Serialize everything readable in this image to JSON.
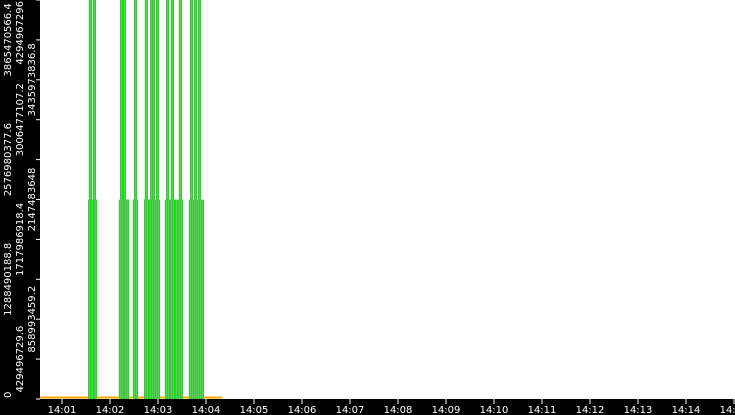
{
  "chart_data": {
    "type": "bar",
    "title": "",
    "xlabel": "",
    "ylabel": "",
    "grid": false,
    "ylim": [
      0,
      4294967296
    ],
    "xlim": [
      "14:00:00",
      "14:15:00"
    ],
    "y_tick_labels": [
      "0",
      "429496729.6",
      "858993459.2",
      "1288490188.8",
      "1717986918.4",
      "2147483648",
      "2576980377.6",
      "3006477107.2",
      "3435973836.8",
      "3865470566.4",
      "4294967296"
    ],
    "x_tick_labels": [
      "14:01",
      "14:02",
      "14:03",
      "14:04",
      "14:05",
      "14:06",
      "14:07",
      "14:08",
      "14:09",
      "14:10",
      "14:11",
      "14:12",
      "14:13",
      "14:14",
      "14:15"
    ],
    "colors": {
      "spike": "#00ee00",
      "spike_edge": "#a0a0a0",
      "baseline": "#ffa500",
      "axis_bg": "#000000"
    },
    "series": [
      {
        "times": [
          "14:01:35",
          "14:01:40",
          "14:02:14",
          "14:02:18",
          "14:02:31",
          "14:02:45",
          "14:02:51",
          "14:02:54",
          "14:02:59",
          "14:03:11",
          "14:03:18",
          "14:03:28",
          "14:03:41",
          "14:03:46",
          "14:03:51"
        ],
        "values": [
          4294967296,
          4294967296,
          4294967296,
          4294967296,
          4294967296,
          4294967296,
          4294967296,
          4294967296,
          4294967296,
          4294967296,
          4294967296,
          4294967296,
          4294967296,
          4294967296,
          4294967296
        ]
      },
      {
        "times": [
          "14:01:34",
          "14:01:38",
          "14:01:41",
          "14:02:13",
          "14:02:15",
          "14:02:19",
          "14:02:21",
          "14:02:30",
          "14:02:33",
          "14:02:44",
          "14:02:46",
          "14:02:50",
          "14:02:53",
          "14:02:55",
          "14:02:58",
          "14:03:00",
          "14:03:10",
          "14:03:13",
          "14:03:16",
          "14:03:19",
          "14:03:23",
          "14:03:26",
          "14:03:29",
          "14:03:40",
          "14:03:43",
          "14:03:45",
          "14:03:48",
          "14:03:50",
          "14:03:53",
          "14:03:55"
        ],
        "values": [
          2147483648,
          2147483648,
          2147483648,
          2147483648,
          2147483648,
          2147483648,
          2147483648,
          2147483648,
          2147483648,
          2147483648,
          2147483648,
          2147483648,
          2147483648,
          2147483648,
          2147483648,
          2147483648,
          2147483648,
          2147483648,
          2147483648,
          2147483648,
          2147483648,
          2147483648,
          2147483648,
          2147483648,
          2147483648,
          2147483648,
          2147483648,
          2147483648,
          2147483648,
          2147483648
        ]
      }
    ],
    "baseline": {
      "from": "14:00:20",
      "to": "14:04:20",
      "value": 0
    }
  }
}
